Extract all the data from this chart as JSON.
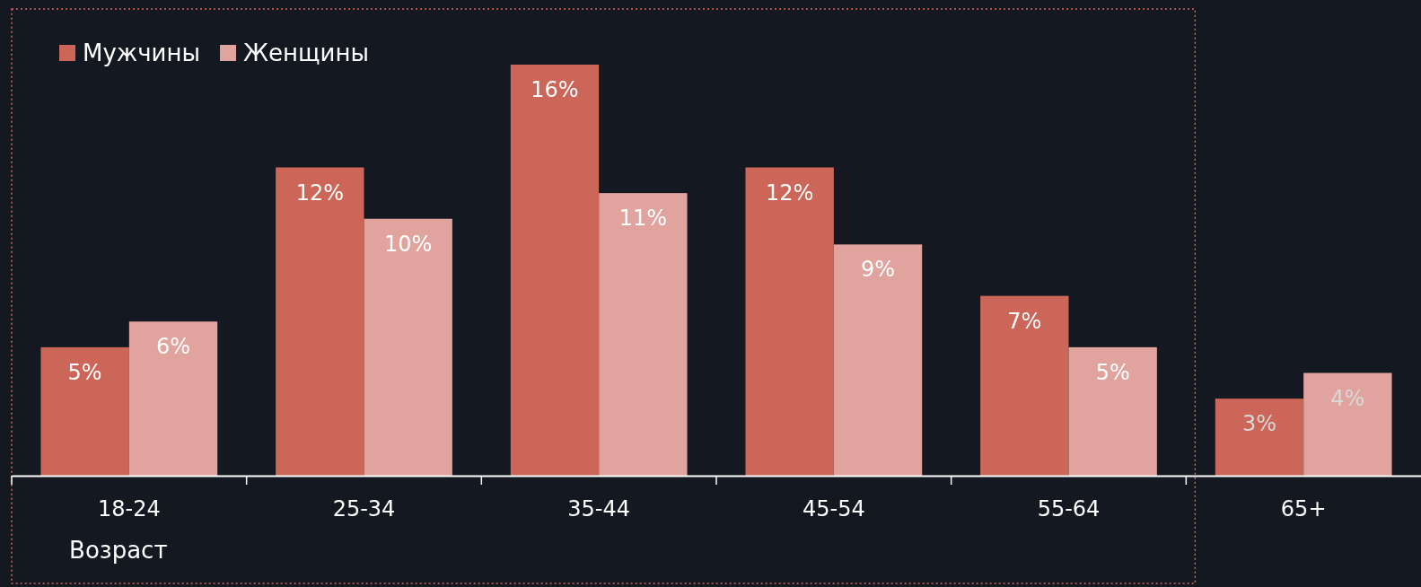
{
  "chart_data": {
    "type": "bar",
    "xlabel": "Возраст",
    "categories": [
      "18-24",
      "25-34",
      "35-44",
      "45-54",
      "55-64",
      "65+"
    ],
    "series": [
      {
        "name": "Мужчины",
        "color": "#cb6658",
        "values": [
          5,
          12,
          16,
          12,
          7,
          3
        ],
        "value_labels": [
          "5%",
          "12%",
          "16%",
          "12%",
          "7%",
          "3%"
        ]
      },
      {
        "name": "Женщины",
        "color": "#e0a39d",
        "values": [
          6,
          10,
          11,
          9,
          5,
          4
        ],
        "value_labels": [
          "6%",
          "10%",
          "11%",
          "9%",
          "5%",
          "4%"
        ]
      }
    ],
    "legend": "top left"
  }
}
